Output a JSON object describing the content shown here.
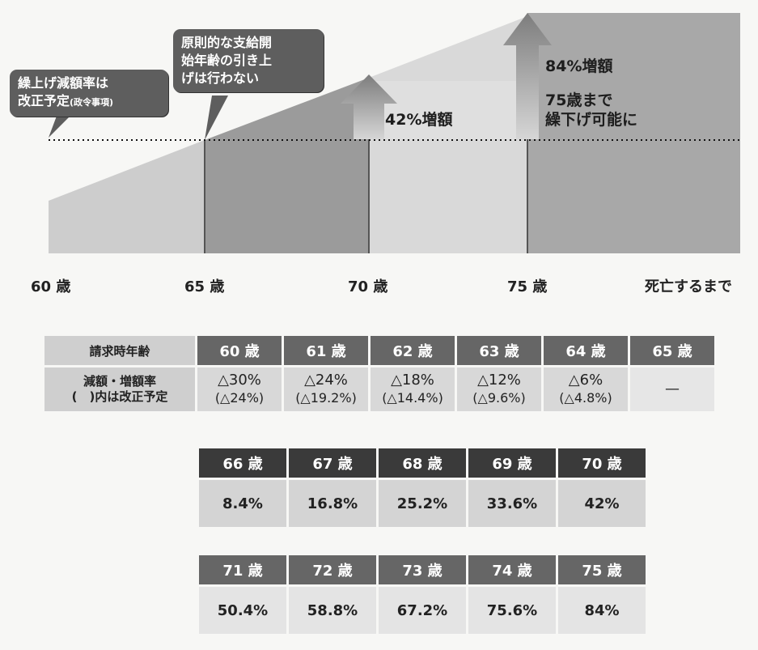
{
  "diagram": {
    "callouts": {
      "early_line1": "繰上げ減額率は",
      "early_line2": "改正予定",
      "early_note": "(政令事項)",
      "no_raise_line1": "原則的な支給開",
      "no_raise_line2": "始年齢の引き上",
      "no_raise_line3": "げは行わない"
    },
    "notes": {
      "increase_70": "42%増額",
      "increase_75": "84%増額",
      "deferral_line1": "75歳まで",
      "deferral_line2": "繰下げ可能に"
    },
    "age_labels": [
      "60 歳",
      "65 歳",
      "70 歳",
      "75 歳",
      "死亡するまで"
    ]
  },
  "reduction_table": {
    "row_label_1": "請求時年齢",
    "row_label_2_line1": "減額・増額率",
    "row_label_2_line2": "(　)内は改正予定",
    "columns": [
      {
        "age": "60 歳",
        "current": "△30%",
        "planned": "(△24%)"
      },
      {
        "age": "61 歳",
        "current": "△24%",
        "planned": "(△19.2%)"
      },
      {
        "age": "62 歳",
        "current": "△18%",
        "planned": "(△14.4%)"
      },
      {
        "age": "63 歳",
        "current": "△12%",
        "planned": "(△9.6%)"
      },
      {
        "age": "64 歳",
        "current": "△6%",
        "planned": "(△4.8%)"
      },
      {
        "age": "65 歳",
        "current": "—",
        "planned": ""
      }
    ]
  },
  "increase_table_1": [
    {
      "age": "66 歳",
      "rate": "8.4%"
    },
    {
      "age": "67 歳",
      "rate": "16.8%"
    },
    {
      "age": "68 歳",
      "rate": "25.2%"
    },
    {
      "age": "69 歳",
      "rate": "33.6%"
    },
    {
      "age": "70 歳",
      "rate": "42%"
    }
  ],
  "increase_table_2": [
    {
      "age": "71 歳",
      "rate": "50.4%"
    },
    {
      "age": "72 歳",
      "rate": "58.8%"
    },
    {
      "age": "73 歳",
      "rate": "67.2%"
    },
    {
      "age": "74 歳",
      "rate": "75.6%"
    },
    {
      "age": "75 歳",
      "rate": "84%"
    }
  ]
}
